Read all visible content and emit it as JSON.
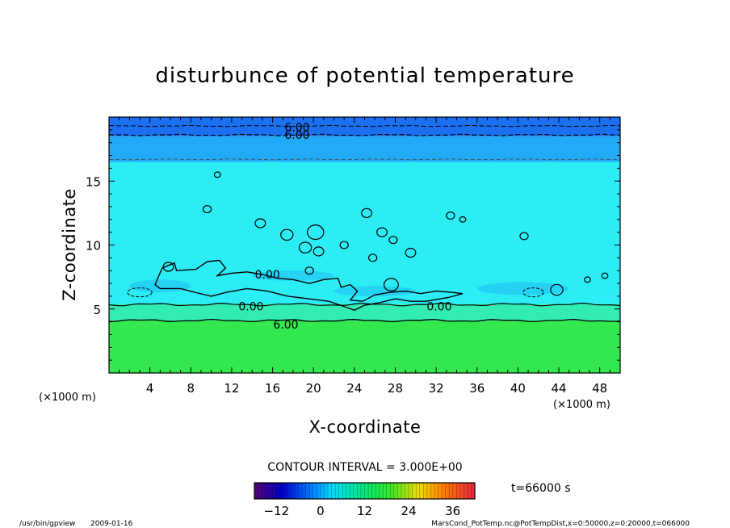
{
  "chart_data": {
    "type": "contour",
    "title": "disturbunce of potential temperature",
    "xlabel": "X-coordinate",
    "ylabel": "Z-coordinate",
    "x_unit": "(×1000 m)",
    "z_unit": "(×1000 m)",
    "xlim": [
      0,
      50
    ],
    "ylim": [
      0,
      20
    ],
    "x_ticks": [
      4,
      8,
      12,
      16,
      20,
      24,
      28,
      32,
      36,
      40,
      44,
      48
    ],
    "y_ticks": [
      5,
      10,
      15
    ],
    "contour_interval": "CONTOUR INTERVAL = 3.000E+00",
    "time_label": "t=66000 s",
    "colorbar_ticks": [
      -12,
      0,
      12,
      24,
      36
    ],
    "colorbar_range": [
      -18,
      42
    ],
    "contour_labels": [
      {
        "text": "6.00",
        "x": 18.4,
        "z": 19.2
      },
      {
        "text": "6.00",
        "x": 18.4,
        "z": 18.6
      },
      {
        "text": "0.00",
        "x": 15.5,
        "z": 7.7
      },
      {
        "text": "0.00",
        "x": 13.9,
        "z": 5.2
      },
      {
        "text": "0.00",
        "x": 32.3,
        "z": 5.2
      },
      {
        "text": "6.00",
        "x": 17.3,
        "z": 3.8
      }
    ],
    "regions": [
      {
        "z_from": 0,
        "z_to": 4.1,
        "value": 12,
        "color": "#33e84f"
      },
      {
        "z_from": 4.1,
        "z_to": 5.4,
        "value": 6,
        "color": "#33ecb4"
      },
      {
        "z_from": 5.4,
        "z_to": 16.5,
        "value": 0,
        "color": "#2cecf4"
      },
      {
        "z_from": 16.5,
        "z_to": 18.5,
        "value": -3,
        "color": "#22aaf6"
      },
      {
        "z_from": 18.5,
        "z_to": 20,
        "value": -6,
        "color": "#1a70f0"
      }
    ]
  },
  "footer": {
    "program": "/usr/bin/gpview",
    "date": "2009-01-16",
    "source": "MarsCond_PotTemp.nc@PotTempDist,x=0:50000,z=0:20000,t=066000"
  }
}
